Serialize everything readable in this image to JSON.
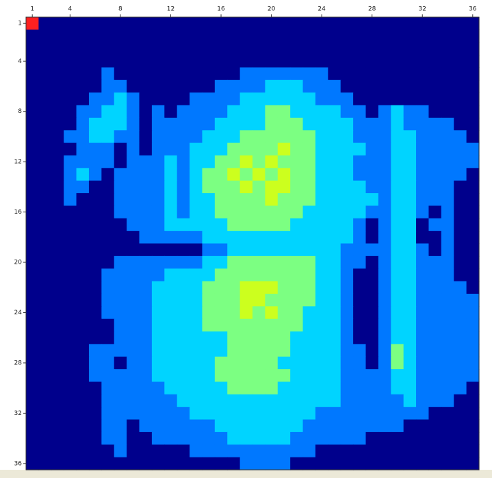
{
  "chart_data": {
    "type": "heatmap",
    "xticks": [
      1,
      4,
      8,
      12,
      16,
      20,
      24,
      28,
      32,
      36
    ],
    "yticks": [
      1,
      4,
      8,
      12,
      16,
      20,
      24,
      28,
      32,
      36
    ],
    "xlim": [
      0.5,
      36.5
    ],
    "ylim": [
      0.5,
      36.5
    ],
    "colors": [
      "#00008c",
      "#0078ff",
      "#00d4ff",
      "#7cff82",
      "#ccff1e",
      "#ff2020"
    ],
    "values": [
      [
        5,
        0,
        0,
        0,
        0,
        0,
        0,
        0,
        0,
        0,
        0,
        0,
        0,
        0,
        0,
        0,
        0,
        0,
        0,
        0,
        0,
        0,
        0,
        0,
        0,
        0,
        0,
        0,
        0,
        0,
        0,
        0,
        0,
        0,
        0,
        0
      ],
      [
        0,
        0,
        0,
        0,
        0,
        0,
        0,
        0,
        0,
        0,
        0,
        0,
        0,
        0,
        0,
        0,
        0,
        0,
        0,
        0,
        0,
        0,
        0,
        0,
        0,
        0,
        0,
        0,
        0,
        0,
        0,
        0,
        0,
        0,
        0,
        0
      ],
      [
        0,
        0,
        0,
        0,
        0,
        0,
        0,
        0,
        0,
        0,
        0,
        0,
        0,
        0,
        0,
        0,
        0,
        0,
        0,
        0,
        0,
        0,
        0,
        0,
        0,
        0,
        0,
        0,
        0,
        0,
        0,
        0,
        0,
        0,
        0,
        0
      ],
      [
        0,
        0,
        0,
        0,
        0,
        0,
        0,
        0,
        0,
        0,
        0,
        0,
        0,
        0,
        0,
        0,
        0,
        0,
        0,
        0,
        0,
        0,
        0,
        0,
        0,
        0,
        0,
        0,
        0,
        0,
        0,
        0,
        0,
        0,
        0,
        0
      ],
      [
        0,
        0,
        0,
        0,
        0,
        0,
        1,
        0,
        0,
        0,
        0,
        0,
        0,
        0,
        0,
        0,
        0,
        1,
        1,
        1,
        1,
        1,
        1,
        1,
        0,
        0,
        0,
        0,
        0,
        0,
        0,
        0,
        0,
        0,
        0,
        0
      ],
      [
        0,
        0,
        0,
        0,
        0,
        0,
        1,
        1,
        0,
        0,
        0,
        0,
        0,
        0,
        0,
        1,
        1,
        1,
        1,
        2,
        2,
        2,
        1,
        1,
        1,
        0,
        0,
        0,
        0,
        0,
        0,
        0,
        0,
        0,
        0,
        0
      ],
      [
        0,
        0,
        0,
        0,
        0,
        1,
        1,
        2,
        1,
        0,
        0,
        0,
        0,
        1,
        1,
        1,
        1,
        2,
        2,
        2,
        2,
        2,
        2,
        1,
        1,
        1,
        0,
        0,
        0,
        0,
        0,
        0,
        0,
        0,
        0,
        0
      ],
      [
        0,
        0,
        0,
        0,
        1,
        1,
        2,
        2,
        1,
        0,
        1,
        0,
        1,
        1,
        1,
        1,
        2,
        2,
        2,
        3,
        3,
        2,
        2,
        2,
        2,
        1,
        1,
        0,
        1,
        2,
        1,
        1,
        0,
        0,
        0,
        0
      ],
      [
        0,
        0,
        0,
        0,
        1,
        2,
        2,
        2,
        1,
        0,
        1,
        1,
        1,
        1,
        1,
        2,
        2,
        2,
        2,
        3,
        3,
        3,
        2,
        2,
        2,
        2,
        1,
        1,
        1,
        2,
        1,
        1,
        1,
        1,
        0,
        0
      ],
      [
        0,
        0,
        0,
        1,
        1,
        2,
        2,
        1,
        1,
        0,
        1,
        1,
        1,
        1,
        2,
        2,
        2,
        3,
        3,
        3,
        3,
        3,
        3,
        2,
        2,
        2,
        1,
        1,
        1,
        2,
        2,
        1,
        1,
        1,
        1,
        0
      ],
      [
        0,
        0,
        0,
        0,
        1,
        1,
        1,
        0,
        1,
        0,
        1,
        1,
        1,
        2,
        2,
        2,
        3,
        3,
        3,
        3,
        4,
        3,
        3,
        2,
        2,
        2,
        2,
        1,
        1,
        2,
        2,
        1,
        1,
        1,
        1,
        1
      ],
      [
        0,
        0,
        0,
        1,
        1,
        1,
        1,
        0,
        1,
        1,
        1,
        2,
        1,
        2,
        2,
        3,
        3,
        4,
        3,
        4,
        3,
        3,
        3,
        2,
        2,
        2,
        1,
        1,
        1,
        2,
        2,
        1,
        1,
        1,
        1,
        1
      ],
      [
        0,
        0,
        0,
        1,
        2,
        1,
        0,
        1,
        1,
        1,
        1,
        2,
        1,
        2,
        3,
        3,
        4,
        3,
        4,
        3,
        4,
        3,
        3,
        2,
        2,
        2,
        1,
        1,
        1,
        2,
        2,
        1,
        1,
        1,
        1,
        0
      ],
      [
        0,
        0,
        0,
        1,
        1,
        0,
        0,
        1,
        1,
        1,
        1,
        2,
        1,
        2,
        3,
        3,
        3,
        4,
        3,
        4,
        4,
        3,
        3,
        2,
        2,
        2,
        2,
        1,
        1,
        2,
        2,
        1,
        1,
        1,
        0,
        0
      ],
      [
        0,
        0,
        0,
        1,
        0,
        0,
        0,
        1,
        1,
        1,
        1,
        2,
        1,
        2,
        2,
        3,
        3,
        3,
        3,
        4,
        3,
        3,
        3,
        2,
        2,
        2,
        2,
        2,
        1,
        2,
        2,
        1,
        1,
        1,
        0,
        0
      ],
      [
        0,
        0,
        0,
        0,
        0,
        0,
        0,
        1,
        1,
        1,
        1,
        2,
        1,
        2,
        2,
        3,
        3,
        3,
        3,
        3,
        3,
        3,
        2,
        2,
        2,
        2,
        2,
        1,
        1,
        2,
        2,
        1,
        0,
        1,
        0,
        0
      ],
      [
        0,
        0,
        0,
        0,
        0,
        0,
        0,
        0,
        1,
        1,
        1,
        2,
        2,
        2,
        2,
        2,
        3,
        3,
        3,
        3,
        3,
        2,
        2,
        2,
        2,
        2,
        1,
        0,
        1,
        2,
        2,
        0,
        1,
        1,
        0,
        0
      ],
      [
        0,
        0,
        0,
        0,
        0,
        0,
        0,
        0,
        0,
        1,
        1,
        1,
        1,
        1,
        2,
        2,
        2,
        2,
        2,
        2,
        2,
        2,
        2,
        2,
        2,
        2,
        1,
        0,
        1,
        2,
        2,
        0,
        0,
        1,
        0,
        0
      ],
      [
        0,
        0,
        0,
        0,
        0,
        0,
        0,
        0,
        0,
        0,
        0,
        0,
        0,
        0,
        1,
        1,
        2,
        2,
        2,
        2,
        2,
        2,
        2,
        2,
        2,
        1,
        1,
        1,
        1,
        2,
        2,
        1,
        0,
        1,
        0,
        0
      ],
      [
        0,
        0,
        0,
        0,
        0,
        0,
        0,
        1,
        1,
        1,
        1,
        1,
        1,
        1,
        2,
        2,
        3,
        3,
        3,
        3,
        3,
        3,
        3,
        2,
        2,
        1,
        1,
        0,
        1,
        2,
        2,
        1,
        1,
        1,
        0,
        0
      ],
      [
        0,
        0,
        0,
        0,
        0,
        0,
        1,
        1,
        1,
        1,
        1,
        2,
        2,
        2,
        2,
        3,
        3,
        3,
        3,
        3,
        3,
        3,
        3,
        2,
        2,
        1,
        0,
        0,
        1,
        2,
        2,
        1,
        1,
        1,
        0,
        0
      ],
      [
        0,
        0,
        0,
        0,
        0,
        0,
        1,
        1,
        1,
        1,
        2,
        2,
        2,
        2,
        3,
        3,
        3,
        4,
        4,
        4,
        3,
        3,
        3,
        2,
        2,
        1,
        0,
        0,
        1,
        2,
        2,
        1,
        1,
        1,
        1,
        0
      ],
      [
        0,
        0,
        0,
        0,
        0,
        0,
        1,
        1,
        1,
        1,
        2,
        2,
        2,
        2,
        3,
        3,
        3,
        4,
        4,
        3,
        3,
        3,
        3,
        2,
        2,
        1,
        0,
        0,
        1,
        2,
        2,
        1,
        1,
        1,
        1,
        1
      ],
      [
        0,
        0,
        0,
        0,
        0,
        0,
        1,
        1,
        1,
        1,
        2,
        2,
        2,
        2,
        3,
        3,
        3,
        4,
        3,
        4,
        3,
        3,
        2,
        2,
        2,
        1,
        0,
        0,
        1,
        2,
        2,
        1,
        1,
        1,
        1,
        1
      ],
      [
        0,
        0,
        0,
        0,
        0,
        0,
        0,
        1,
        1,
        1,
        2,
        2,
        2,
        2,
        3,
        3,
        3,
        3,
        3,
        3,
        3,
        3,
        2,
        2,
        2,
        1,
        0,
        0,
        1,
        2,
        2,
        1,
        1,
        1,
        1,
        1
      ],
      [
        0,
        0,
        0,
        0,
        0,
        0,
        0,
        1,
        1,
        1,
        2,
        2,
        2,
        2,
        2,
        2,
        3,
        3,
        3,
        3,
        3,
        2,
        2,
        2,
        2,
        1,
        0,
        0,
        1,
        2,
        2,
        1,
        1,
        1,
        1,
        1
      ],
      [
        0,
        0,
        0,
        0,
        0,
        1,
        1,
        1,
        1,
        1,
        2,
        2,
        2,
        2,
        2,
        2,
        3,
        3,
        3,
        3,
        3,
        2,
        2,
        2,
        2,
        1,
        1,
        0,
        1,
        3,
        2,
        1,
        1,
        1,
        1,
        1
      ],
      [
        0,
        0,
        0,
        0,
        0,
        1,
        1,
        0,
        1,
        1,
        2,
        2,
        2,
        2,
        2,
        3,
        3,
        3,
        3,
        3,
        2,
        2,
        2,
        2,
        2,
        1,
        1,
        0,
        1,
        3,
        2,
        1,
        1,
        1,
        1,
        1
      ],
      [
        0,
        0,
        0,
        0,
        0,
        1,
        1,
        1,
        1,
        1,
        2,
        2,
        2,
        2,
        2,
        3,
        3,
        3,
        3,
        3,
        3,
        2,
        2,
        2,
        2,
        1,
        1,
        1,
        1,
        2,
        2,
        1,
        1,
        1,
        1,
        1
      ],
      [
        0,
        0,
        0,
        0,
        0,
        0,
        1,
        1,
        1,
        1,
        1,
        2,
        2,
        2,
        2,
        2,
        3,
        3,
        3,
        3,
        2,
        2,
        2,
        2,
        2,
        1,
        1,
        1,
        1,
        2,
        2,
        1,
        1,
        1,
        1,
        0
      ],
      [
        0,
        0,
        0,
        0,
        0,
        0,
        1,
        1,
        1,
        1,
        1,
        1,
        2,
        2,
        2,
        2,
        2,
        2,
        2,
        2,
        2,
        2,
        2,
        2,
        2,
        1,
        1,
        1,
        1,
        1,
        2,
        1,
        1,
        1,
        0,
        0
      ],
      [
        0,
        0,
        0,
        0,
        0,
        0,
        1,
        1,
        1,
        1,
        1,
        1,
        1,
        2,
        2,
        2,
        2,
        2,
        2,
        2,
        2,
        2,
        2,
        1,
        1,
        1,
        1,
        1,
        1,
        1,
        1,
        1,
        0,
        0,
        0,
        0
      ],
      [
        0,
        0,
        0,
        0,
        0,
        0,
        1,
        1,
        0,
        1,
        1,
        1,
        1,
        1,
        1,
        2,
        2,
        2,
        2,
        2,
        2,
        2,
        1,
        1,
        1,
        1,
        1,
        1,
        1,
        1,
        0,
        0,
        0,
        0,
        0,
        0
      ],
      [
        0,
        0,
        0,
        0,
        0,
        0,
        1,
        1,
        0,
        0,
        1,
        1,
        1,
        1,
        1,
        1,
        2,
        2,
        2,
        2,
        2,
        1,
        1,
        1,
        1,
        1,
        1,
        0,
        0,
        0,
        0,
        0,
        0,
        0,
        0,
        0
      ],
      [
        0,
        0,
        0,
        0,
        0,
        0,
        0,
        1,
        0,
        0,
        0,
        0,
        0,
        1,
        1,
        1,
        1,
        1,
        1,
        1,
        1,
        1,
        1,
        0,
        0,
        0,
        0,
        0,
        0,
        0,
        0,
        0,
        0,
        0,
        0,
        0
      ],
      [
        0,
        0,
        0,
        0,
        0,
        0,
        0,
        0,
        0,
        0,
        0,
        0,
        0,
        0,
        0,
        0,
        0,
        1,
        1,
        1,
        1,
        0,
        0,
        0,
        0,
        0,
        0,
        0,
        0,
        0,
        0,
        0,
        0,
        0,
        0,
        0
      ]
    ]
  }
}
